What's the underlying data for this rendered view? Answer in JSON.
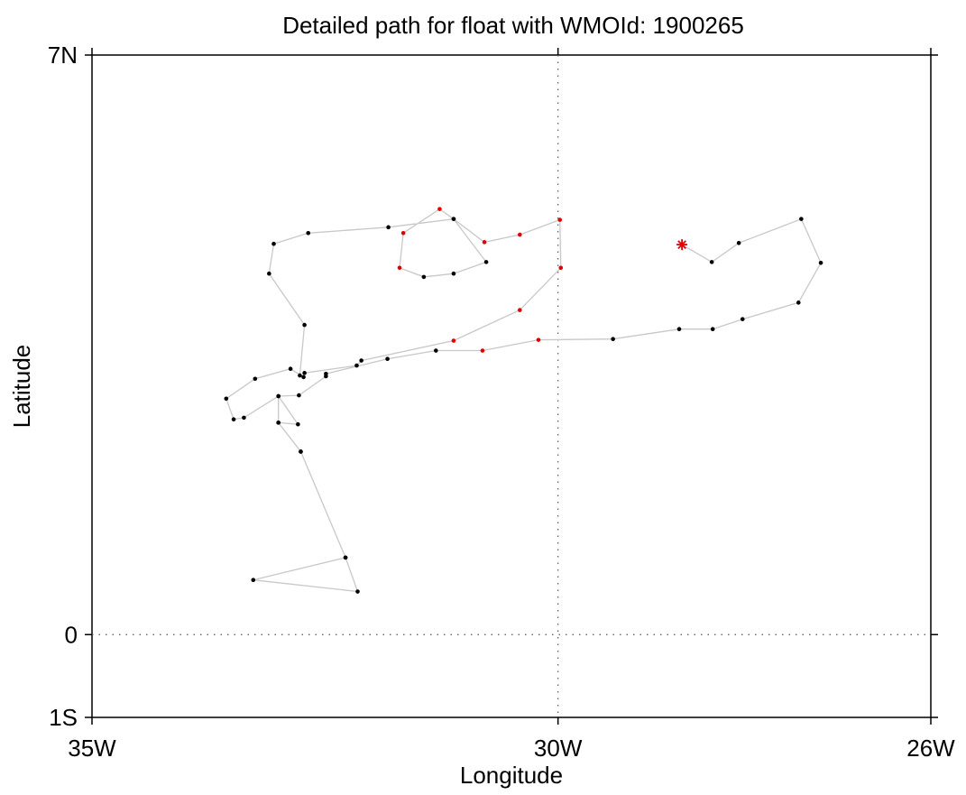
{
  "chart_data": {
    "type": "scatter",
    "title": "Detailed path for float with WMOId: 1900265",
    "xlabel": "Longitude",
    "ylabel": "Latitude",
    "xlim": [
      -35,
      -26
    ],
    "ylim": [
      -1,
      7
    ],
    "x_ticks": [
      {
        "value": -35,
        "label": "35W"
      },
      {
        "value": -30,
        "label": "30W"
      },
      {
        "value": -26,
        "label": "26W"
      }
    ],
    "y_ticks": [
      {
        "value": 7,
        "label": "7N"
      },
      {
        "value": 0,
        "label": "0"
      },
      {
        "value": -1,
        "label": "1S"
      }
    ],
    "reference_lines": {
      "equator": 0,
      "meridian": -30
    },
    "colors": {
      "path": "#c8c8c8",
      "profile": "#000000",
      "highlight": "#e00000",
      "start_marker": "#e00000"
    },
    "start_marker": {
      "lon": -28.67,
      "lat": 4.71,
      "symbol": "asterisk"
    },
    "series": [
      {
        "points": [
          {
            "lon": -28.67,
            "lat": 4.71,
            "c": "r"
          },
          {
            "lon": -28.35,
            "lat": 4.5
          },
          {
            "lon": -28.06,
            "lat": 4.73
          },
          {
            "lon": -27.39,
            "lat": 5.02
          },
          {
            "lon": -27.18,
            "lat": 4.49
          },
          {
            "lon": -27.42,
            "lat": 4.01
          },
          {
            "lon": -28.02,
            "lat": 3.81
          },
          {
            "lon": -28.34,
            "lat": 3.69
          },
          {
            "lon": -28.7,
            "lat": 3.69
          },
          {
            "lon": -29.41,
            "lat": 3.57
          },
          {
            "lon": -30.21,
            "lat": 3.56,
            "c": "r"
          },
          {
            "lon": -30.81,
            "lat": 3.43,
            "c": "r"
          },
          {
            "lon": -31.31,
            "lat": 3.43
          },
          {
            "lon": -31.83,
            "lat": 3.33
          },
          {
            "lon": -32.49,
            "lat": 3.15
          },
          {
            "lon": -32.49,
            "lat": 3.12
          },
          {
            "lon": -32.78,
            "lat": 2.89
          },
          {
            "lon": -33.0,
            "lat": 2.88
          },
          {
            "lon": -33.0,
            "lat": 2.56
          },
          {
            "lon": -32.76,
            "lat": 2.21
          },
          {
            "lon": -32.28,
            "lat": 0.93
          },
          {
            "lon": -32.15,
            "lat": 0.52
          },
          {
            "lon": -33.27,
            "lat": 0.66
          },
          {
            "lon": -32.28,
            "lat": 0.93
          },
          {
            "lon": -32.76,
            "lat": 2.21
          },
          {
            "lon": -33.0,
            "lat": 2.56
          },
          {
            "lon": -32.79,
            "lat": 2.54
          },
          {
            "lon": -33.0,
            "lat": 2.88
          },
          {
            "lon": -33.37,
            "lat": 2.62
          },
          {
            "lon": -33.48,
            "lat": 2.6
          },
          {
            "lon": -33.56,
            "lat": 2.85
          },
          {
            "lon": -33.25,
            "lat": 3.09
          },
          {
            "lon": -32.87,
            "lat": 3.21
          },
          {
            "lon": -32.73,
            "lat": 3.11
          },
          {
            "lon": -32.77,
            "lat": 3.13
          },
          {
            "lon": -32.72,
            "lat": 3.74
          },
          {
            "lon": -33.1,
            "lat": 4.36
          },
          {
            "lon": -33.05,
            "lat": 4.72
          },
          {
            "lon": -32.68,
            "lat": 4.85
          },
          {
            "lon": -31.82,
            "lat": 4.92
          },
          {
            "lon": -31.12,
            "lat": 5.02
          },
          {
            "lon": -30.77,
            "lat": 4.5
          },
          {
            "lon": -31.12,
            "lat": 4.36
          },
          {
            "lon": -31.44,
            "lat": 4.32
          },
          {
            "lon": -31.7,
            "lat": 4.43,
            "c": "r"
          },
          {
            "lon": -31.66,
            "lat": 4.85,
            "c": "r"
          },
          {
            "lon": -31.27,
            "lat": 5.14,
            "c": "r"
          },
          {
            "lon": -31.12,
            "lat": 5.02
          },
          {
            "lon": -30.79,
            "lat": 4.74,
            "c": "r"
          },
          {
            "lon": -30.41,
            "lat": 4.83,
            "c": "r"
          },
          {
            "lon": -29.98,
            "lat": 5.01,
            "c": "r"
          },
          {
            "lon": -29.97,
            "lat": 4.43,
            "c": "r"
          },
          {
            "lon": -30.41,
            "lat": 3.92,
            "c": "r"
          },
          {
            "lon": -31.12,
            "lat": 3.55,
            "c": "r"
          },
          {
            "lon": -32.11,
            "lat": 3.31
          },
          {
            "lon": -32.16,
            "lat": 3.25
          },
          {
            "lon": -32.72,
            "lat": 3.16
          }
        ]
      }
    ]
  }
}
